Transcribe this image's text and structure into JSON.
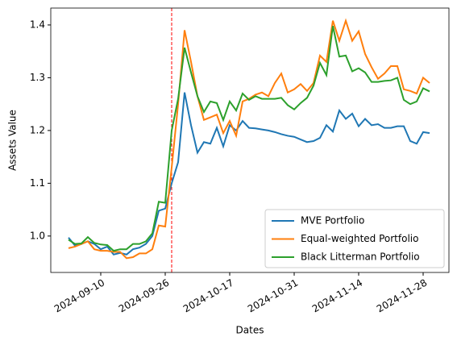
{
  "chart_data": {
    "type": "line",
    "xlabel": "Dates",
    "ylabel": "Assets Value",
    "categories": [
      null,
      null,
      null,
      null,
      null,
      "2024-09-10",
      null,
      null,
      null,
      null,
      null,
      null,
      null,
      null,
      null,
      "2024-09-26",
      null,
      null,
      null,
      null,
      null,
      null,
      null,
      null,
      null,
      "2024-10-17",
      null,
      null,
      null,
      null,
      null,
      null,
      null,
      null,
      null,
      "2024-10-31",
      null,
      null,
      null,
      null,
      null,
      null,
      null,
      null,
      null,
      "2024-11-14",
      null,
      null,
      null,
      null,
      null,
      null,
      null,
      null,
      null,
      "2024-11-28",
      null
    ],
    "series": [
      {
        "name": "MVE Portfolio",
        "color": "#1f77b4",
        "values": [
          0.997,
          0.982,
          0.985,
          0.99,
          0.985,
          0.975,
          0.98,
          0.965,
          0.968,
          0.965,
          0.975,
          0.978,
          0.985,
          1.0,
          1.048,
          1.052,
          1.1,
          1.14,
          1.272,
          1.21,
          1.158,
          1.178,
          1.175,
          1.205,
          1.17,
          1.21,
          1.2,
          1.218,
          1.205,
          1.204,
          1.202,
          1.2,
          1.197,
          1.193,
          1.19,
          1.188,
          1.183,
          1.178,
          1.18,
          1.186,
          1.21,
          1.198,
          1.238,
          1.222,
          1.232,
          1.208,
          1.222,
          1.21,
          1.212,
          1.205,
          1.205,
          1.208,
          1.208,
          1.18,
          1.175,
          1.197,
          1.195
        ]
      },
      {
        "name": "Equal-weighted Portfolio",
        "color": "#ff7f0e",
        "values": [
          0.977,
          0.98,
          0.985,
          0.99,
          0.975,
          0.972,
          0.972,
          0.97,
          0.97,
          0.958,
          0.96,
          0.967,
          0.967,
          0.975,
          1.02,
          1.018,
          1.13,
          1.25,
          1.39,
          1.33,
          1.265,
          1.22,
          1.225,
          1.23,
          1.195,
          1.218,
          1.19,
          1.255,
          1.26,
          1.268,
          1.272,
          1.265,
          1.29,
          1.308,
          1.272,
          1.278,
          1.288,
          1.275,
          1.29,
          1.342,
          1.33,
          1.408,
          1.37,
          1.408,
          1.37,
          1.388,
          1.345,
          1.32,
          1.298,
          1.308,
          1.322,
          1.322,
          1.278,
          1.275,
          1.27,
          1.3,
          1.29
        ]
      },
      {
        "name": "Black Litterman Portfolio",
        "color": "#2ca02c",
        "values": [
          0.993,
          0.985,
          0.986,
          0.998,
          0.987,
          0.984,
          0.983,
          0.972,
          0.975,
          0.975,
          0.985,
          0.985,
          0.99,
          1.005,
          1.065,
          1.063,
          1.2,
          1.26,
          1.357,
          1.31,
          1.265,
          1.235,
          1.255,
          1.252,
          1.22,
          1.255,
          1.238,
          1.27,
          1.258,
          1.265,
          1.26,
          1.26,
          1.26,
          1.262,
          1.248,
          1.24,
          1.252,
          1.262,
          1.285,
          1.328,
          1.305,
          1.398,
          1.34,
          1.342,
          1.312,
          1.318,
          1.31,
          1.292,
          1.292,
          1.294,
          1.295,
          1.3,
          1.258,
          1.25,
          1.255,
          1.28,
          1.274
        ]
      }
    ],
    "xlim": [
      -2.75,
      59
    ],
    "ylim": [
      0.931,
      1.432
    ],
    "yticks": [
      {
        "value": 1,
        "label": "1.0"
      },
      1.1,
      1.2,
      1.3,
      1.4
    ],
    "vline": {
      "x": 16,
      "color": "red"
    },
    "legend": "lower right",
    "grid": false
  }
}
